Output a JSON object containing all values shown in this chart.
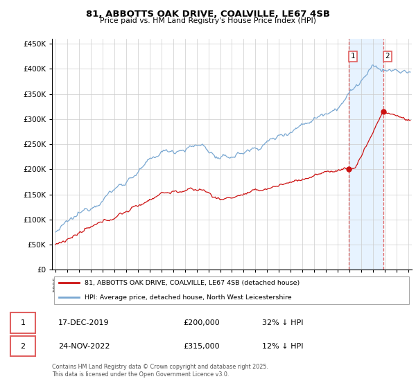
{
  "title": "81, ABBOTTS OAK DRIVE, COALVILLE, LE67 4SB",
  "subtitle": "Price paid vs. HM Land Registry's House Price Index (HPI)",
  "hpi_color": "#7aa8d2",
  "price_color": "#cc1111",
  "bg_color": "#ffffff",
  "grid_color": "#cccccc",
  "dashed_color": "#e06060",
  "shaded_color": "#ddeeff",
  "legend_label_red": "81, ABBOTTS OAK DRIVE, COALVILLE, LE67 4SB (detached house)",
  "legend_label_blue": "HPI: Average price, detached house, North West Leicestershire",
  "transaction1_date": "17-DEC-2019",
  "transaction1_price": "£200,000",
  "transaction1_note": "32% ↓ HPI",
  "transaction1_year": 2019.96,
  "transaction1_value": 200000,
  "transaction2_date": "24-NOV-2022",
  "transaction2_price": "£315,000",
  "transaction2_note": "12% ↓ HPI",
  "transaction2_year": 2022.88,
  "transaction2_value": 315000,
  "footer": "Contains HM Land Registry data © Crown copyright and database right 2025.\nThis data is licensed under the Open Government Licence v3.0.",
  "ylim_min": 0,
  "ylim_max": 460000,
  "xmin": 1994.7,
  "xmax": 2025.3,
  "yticks": [
    0,
    50000,
    100000,
    150000,
    200000,
    250000,
    300000,
    350000,
    400000,
    450000
  ]
}
